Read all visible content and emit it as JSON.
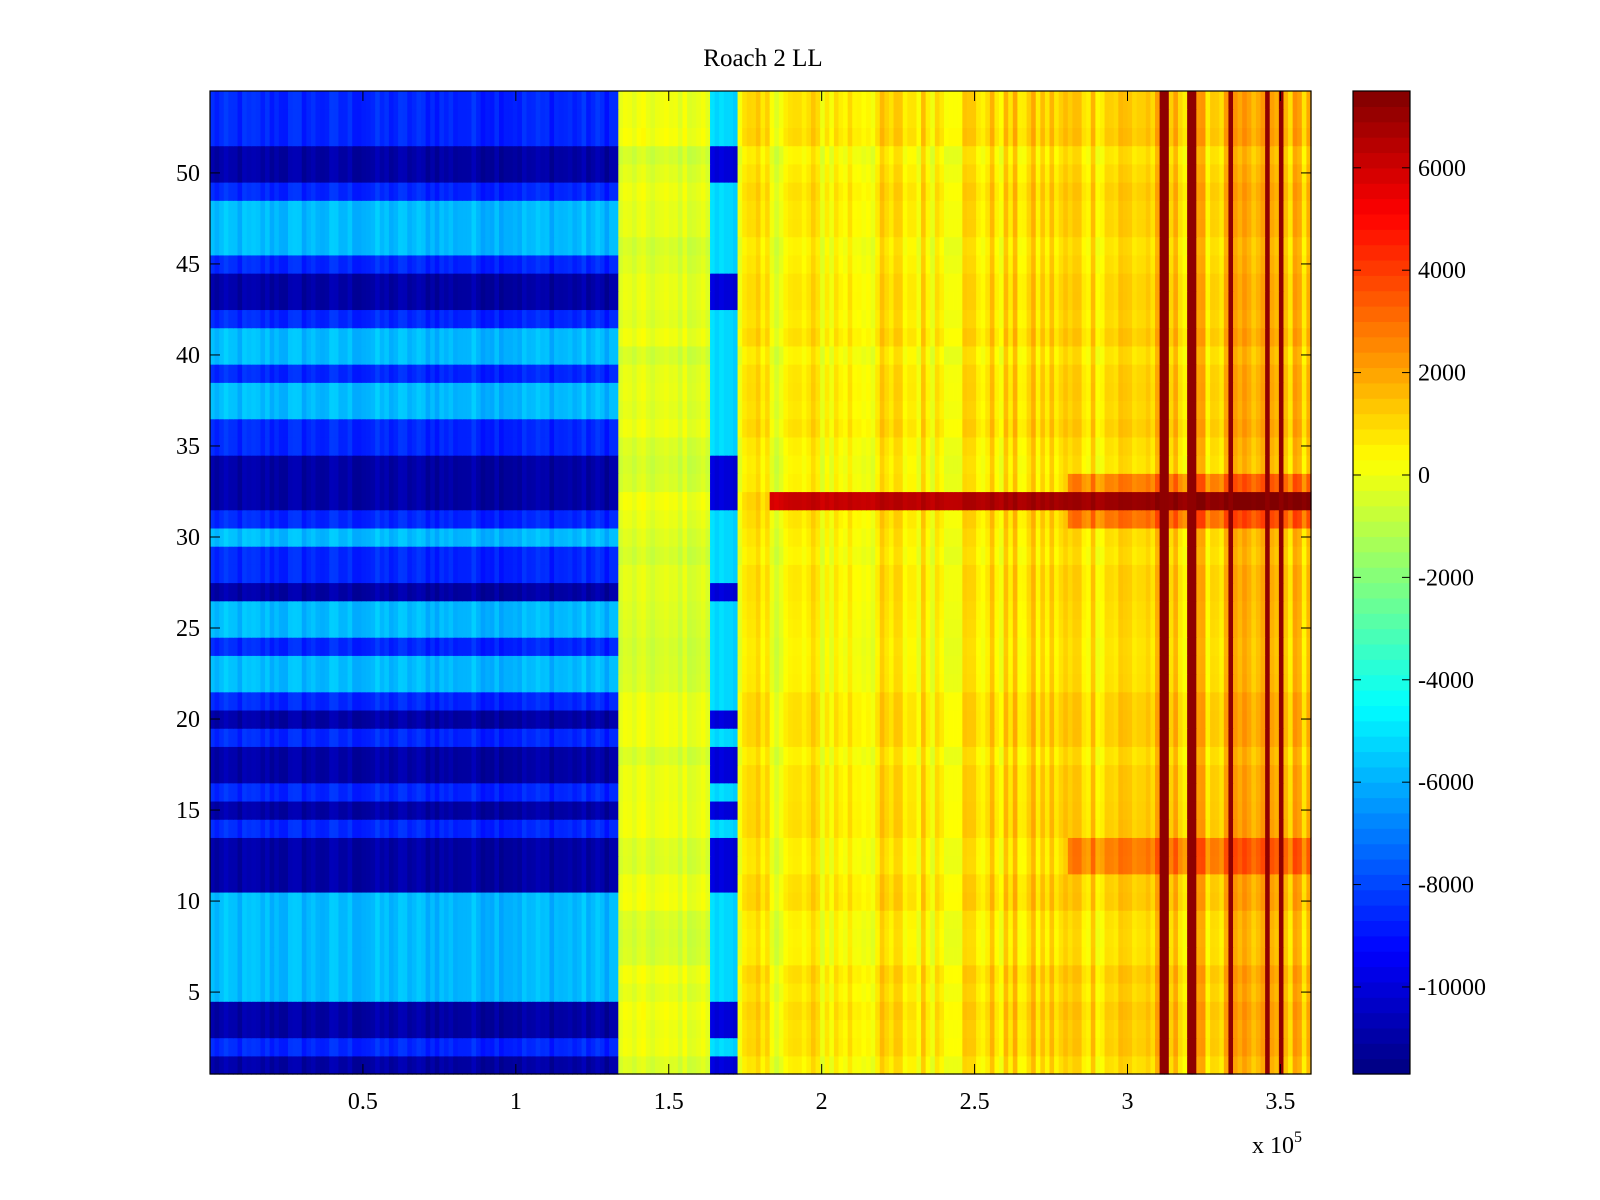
{
  "chart_data": {
    "type": "heatmap",
    "title": "Roach 2 LL",
    "xlabel": "",
    "ylabel": "",
    "x_exponent_label": "x 10",
    "x_exponent_power": "5",
    "xlim": [
      0,
      3.6
    ],
    "ylim": [
      0.5,
      54.5
    ],
    "x_ticks": [
      0.5,
      1,
      1.5,
      2,
      2.5,
      3,
      3.5
    ],
    "x_tick_labels": [
      "0.5",
      "1",
      "1.5",
      "2",
      "2.5",
      "3",
      "3.5"
    ],
    "y_ticks": [
      5,
      10,
      15,
      20,
      25,
      30,
      35,
      40,
      45,
      50
    ],
    "y_tick_labels": [
      "5",
      "10",
      "15",
      "20",
      "25",
      "30",
      "35",
      "40",
      "45",
      "50"
    ],
    "colormap": "jet",
    "clim": [
      -11700,
      7500
    ],
    "colorbar_ticks": [
      -10000,
      -8000,
      -6000,
      -4000,
      -2000,
      0,
      2000,
      4000,
      6000
    ],
    "colorbar_tick_labels": [
      "-10000",
      "-8000",
      "-6000",
      "-4000",
      "-2000",
      "0",
      "2000",
      "4000",
      "6000"
    ],
    "rows": 54,
    "regions": [
      {
        "x_start": 0,
        "x_end": 1.34,
        "description": "low-value band",
        "typical_value": -7500
      },
      {
        "x_start": 1.34,
        "x_end": 1.63,
        "description": "transition band",
        "typical_value": -200
      },
      {
        "x_start": 1.63,
        "x_end": 1.73,
        "description": "cyan band",
        "typical_value": -5200
      },
      {
        "x_start": 1.73,
        "x_end": 3.6,
        "description": "high-value band",
        "typical_value": 500
      }
    ],
    "row_offsets": {
      "very_low_rows": [
        1,
        3,
        4,
        11,
        12,
        13,
        15,
        17,
        18,
        20,
        27,
        33,
        32,
        34,
        43,
        44,
        50,
        51
      ],
      "very_low_value": -11000,
      "low_rows": [
        2,
        14,
        16,
        19,
        21,
        24,
        28,
        29,
        31,
        35,
        36,
        39,
        42,
        45,
        49,
        52,
        53,
        54
      ],
      "low_value": -8600,
      "high_rows": [
        5,
        6,
        7,
        8,
        9,
        10,
        22,
        23,
        25,
        26,
        30,
        37,
        38,
        40,
        41,
        46,
        47,
        48
      ],
      "high_value": -5800
    },
    "hot_row": {
      "row": 32,
      "x_start": 1.83,
      "value": 6000
    },
    "vertical_hot_lines_x": [
      3.12,
      3.21,
      3.34,
      3.46,
      3.5
    ],
    "vertical_hot_value": 7200
  }
}
